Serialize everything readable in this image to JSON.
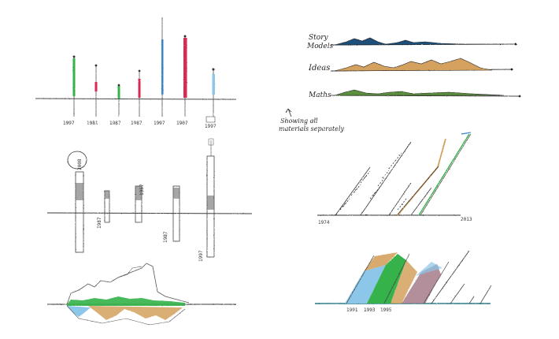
{
  "palette": {
    "ink": "#3a3a3a",
    "green": "#35b24a",
    "red": "#d92b55",
    "blue": "#3a86c8",
    "lightblue": "#8cc6e8",
    "tan": "#d4a15e",
    "navy": "#1f4f7a",
    "olive": "#5a8f3a",
    "mauve": "#a67a8a"
  },
  "sketch_top_left": {
    "icon": "pencil-sketch-lollipop-chart",
    "x_labels": [
      "1997",
      "1981",
      "1987",
      "1987",
      "1997",
      "1907",
      "1997"
    ]
  },
  "sketch_top_right": {
    "icon": "pencil-sketch-horizon-ridgelines",
    "rows": [
      {
        "label_line1": "Story",
        "label_line2": "Models"
      },
      {
        "label_line1": "Ideas",
        "label_line2": ""
      },
      {
        "label_line1": "Maths",
        "label_line2": ""
      }
    ],
    "annotation_line1": "Showing all",
    "annotation_line2": "materials separately"
  },
  "sketch_mid_left": {
    "icon": "pencil-sketch-floating-bars",
    "labels": [
      "2008",
      "1987",
      "1957",
      "1987",
      "1997"
    ]
  },
  "sketch_mid_right": {
    "icon": "pencil-sketch-diagonal-timeline",
    "axis_start": "1974",
    "axis_end": "2013"
  },
  "sketch_bottom_left": {
    "icon": "pencil-sketch-mirrored-area"
  },
  "sketch_bottom_right": {
    "icon": "pencil-sketch-slanted-bands",
    "labels": [
      "1991",
      "1993",
      "1995"
    ]
  }
}
